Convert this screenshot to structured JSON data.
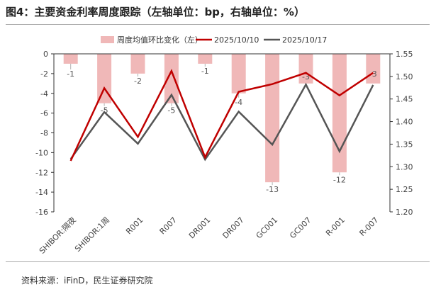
{
  "figure_title": "图4：主要资金利率周度跟踪（左轴单位：bp，右轴单位：%）",
  "source_note": "资料来源：iFinD，民生证券研究院",
  "chart_data": {
    "type": "bar",
    "categories": [
      "SHIBOR:隔夜",
      "SHIBOR:1周",
      "R001",
      "R007",
      "DR001",
      "DR007",
      "GC001",
      "GC007",
      "R-001",
      "R-007"
    ],
    "series": [
      {
        "name": "周度均值环比变化（左）",
        "type": "bar",
        "axis": "left",
        "values": [
          -1,
          -5,
          -2,
          -5,
          -1,
          -4,
          -13,
          -3,
          -12,
          -3
        ],
        "color": "#f0b8b8"
      },
      {
        "name": "2025/10/10",
        "type": "line",
        "axis": "right",
        "values": [
          1.313,
          1.474,
          1.366,
          1.512,
          1.321,
          1.466,
          1.483,
          1.508,
          1.458,
          1.508
        ],
        "color": "#c00000"
      },
      {
        "name": "2025/10/17",
        "type": "line",
        "axis": "right",
        "values": [
          1.317,
          1.421,
          1.351,
          1.459,
          1.316,
          1.422,
          1.349,
          1.482,
          1.334,
          1.481
        ],
        "color": "#555555"
      }
    ],
    "bar_labels": [
      "-1",
      "-5",
      "-2",
      "-5",
      "-1",
      "-4",
      "-13",
      "-3",
      "-12",
      "-3"
    ],
    "y_left": {
      "min": -16,
      "max": 0,
      "ticks": [
        "0",
        "-2",
        "-4",
        "-6",
        "-8",
        "-10",
        "-12",
        "-14",
        "-16"
      ]
    },
    "y_right": {
      "min": 1.2,
      "max": 1.55,
      "ticks": [
        "1.55",
        "1.50",
        "1.45",
        "1.40",
        "1.35",
        "1.30",
        "1.25",
        "1.20"
      ]
    },
    "legend_position": "top",
    "grid": false
  }
}
